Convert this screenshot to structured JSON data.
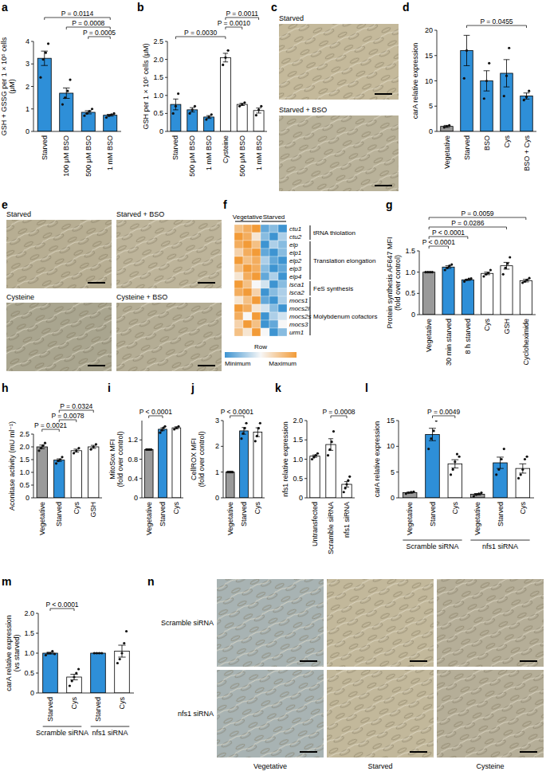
{
  "chart_data": [
    {
      "panel": "a",
      "type": "bar",
      "y_label": "GSH + GSSG per 1 × 10⁵ cells (μM)",
      "categories": [
        "Starved",
        "100 μM BSO",
        "500 μM BSO",
        "1 mM BSO"
      ],
      "values": [
        3.25,
        1.7,
        0.85,
        0.72
      ],
      "errors": [
        0.32,
        0.23,
        0.07,
        0.04
      ],
      "points": [
        [
          2.4,
          3.2,
          3.5,
          3.9
        ],
        [
          1.2,
          1.5,
          1.8,
          2.3
        ],
        [
          0.7,
          0.8,
          0.9,
          1.0
        ],
        [
          0.62,
          0.7,
          0.75,
          0.8
        ]
      ],
      "colors": [
        "#2e8fd8",
        "#2e8fd8",
        "#2e8fd8",
        "#2e8fd8"
      ],
      "ylim": [
        0,
        4
      ],
      "yticks": [
        0,
        1,
        2,
        3,
        4
      ],
      "comparisons": [
        {
          "label": "P = 0.0114",
          "from": 0,
          "to": 3
        },
        {
          "label": "P = 0.0008",
          "from": 1,
          "to": 3
        },
        {
          "label": "P = 0.0005",
          "from": 2,
          "to": 3
        }
      ]
    },
    {
      "panel": "b",
      "type": "bar",
      "y_label": "GSH per 1 × 10⁵ cells (μM)",
      "categories": [
        "Starved",
        "500 μM BSO",
        "1 mM BSO",
        "Cysteine",
        "500 μM BSO",
        "1 mM BSO"
      ],
      "values": [
        0.75,
        0.6,
        0.4,
        2.05,
        0.75,
        0.58
      ],
      "errors": [
        0.15,
        0.06,
        0.04,
        0.12,
        0.03,
        0.07
      ],
      "points": [
        [
          0.5,
          0.7,
          1.05
        ],
        [
          0.5,
          0.6,
          0.7
        ],
        [
          0.33,
          0.4,
          0.47
        ],
        [
          1.85,
          2.05,
          2.25
        ],
        [
          0.7,
          0.75,
          0.8
        ],
        [
          0.45,
          0.6,
          0.7
        ]
      ],
      "colors": [
        "#2e8fd8",
        "#2e8fd8",
        "#2e8fd8",
        "#ffffff",
        "#ffffff",
        "#ffffff"
      ],
      "ylim": [
        0,
        2.5
      ],
      "yticks": [
        0,
        0.5,
        {
          "value": 1,
          "label": "1.0"
        },
        1.5,
        {
          "value": 2,
          "label": "2.0"
        },
        2.5
      ],
      "comparisons": [
        {
          "label": "P = 0.0011",
          "from": 3,
          "to": 5
        },
        {
          "label": "P = 0.0010",
          "from": 3,
          "to": 4
        },
        {
          "label": "P = 0.0030",
          "from": 0,
          "to": 3
        }
      ]
    },
    {
      "panel": "c",
      "type": "image",
      "labels": [
        "Starved",
        "Starved + BSO"
      ]
    },
    {
      "panel": "d",
      "type": "bar",
      "y_label": "carA relative expression",
      "categories": [
        "Vegetative",
        "Starved",
        "BSO",
        "Cys",
        "BSO + Cys"
      ],
      "values": [
        1.0,
        16.0,
        10.0,
        11.5,
        7.0
      ],
      "errors": [
        0.2,
        3.0,
        2.0,
        2.7,
        0.6
      ],
      "points": [
        [
          0.8,
          1.0,
          1.2
        ],
        [
          10.5,
          16.0,
          21.0
        ],
        [
          6.5,
          10.0,
          13.5
        ],
        [
          7.0,
          11.0,
          16.5
        ],
        [
          6.2,
          6.8,
          8.0
        ]
      ],
      "colors": [
        "#9a9a9a",
        "#2e8fd8",
        "#2e8fd8",
        "#2e8fd8",
        "#2e8fd8"
      ],
      "ylim": [
        0,
        20
      ],
      "yticks": [
        0,
        5,
        10,
        15,
        20
      ],
      "comparisons": [
        {
          "label": "P = 0.0455",
          "from": 1,
          "to": 4
        }
      ]
    },
    {
      "panel": "e",
      "type": "image",
      "labels": [
        "Starved",
        "Starved + BSO",
        "Cysteine",
        "Cysteine + BSO"
      ]
    },
    {
      "panel": "f",
      "type": "heatmap",
      "rows": [
        "ctu1",
        "ctu2",
        "elp",
        "elp1",
        "elp2",
        "elp3",
        "elp4",
        "isca1",
        "isca2",
        "mocs1",
        "mocs2l",
        "mocs2s",
        "mocs3",
        "urm1"
      ],
      "column_groups": [
        {
          "label": "Vegetative",
          "columns": [
            0,
            1,
            2
          ]
        },
        {
          "label": "Starved",
          "columns": [
            3,
            4,
            5
          ]
        }
      ],
      "row_groups": [
        {
          "label": "tRNA thiolation",
          "rows": [
            0,
            1
          ]
        },
        {
          "label": "Translation elongation",
          "rows": [
            2,
            3,
            4,
            5,
            6
          ]
        },
        {
          "label": "FeS synthesis",
          "rows": [
            7,
            8
          ]
        },
        {
          "label": "Molybdenum cofactors",
          "rows": [
            9,
            10,
            11,
            12,
            13
          ]
        }
      ],
      "cells": [
        [
          0.8,
          0.9,
          1.0,
          0.1,
          0.2,
          0.0
        ],
        [
          1.0,
          0.9,
          0.6,
          0.2,
          0.0,
          0.3
        ],
        [
          0.9,
          1.0,
          0.8,
          0.0,
          0.3,
          0.2
        ],
        [
          0.7,
          0.9,
          1.0,
          0.1,
          0.0,
          0.2
        ],
        [
          1.0,
          0.8,
          0.9,
          0.3,
          0.1,
          0.0
        ],
        [
          0.8,
          1.0,
          0.9,
          0.2,
          0.0,
          0.1
        ],
        [
          0.6,
          0.9,
          1.0,
          0.1,
          0.3,
          0.0
        ],
        [
          1.0,
          0.8,
          0.5,
          0.4,
          0.0,
          0.2
        ],
        [
          0.9,
          1.0,
          0.7,
          0.0,
          0.2,
          0.3
        ],
        [
          0.6,
          0.8,
          1.0,
          0.1,
          0.0,
          0.3
        ],
        [
          1.0,
          0.9,
          0.6,
          0.4,
          0.2,
          0.0
        ],
        [
          0.9,
          0.5,
          1.0,
          0.0,
          0.3,
          0.4
        ],
        [
          0.7,
          1.0,
          0.8,
          0.0,
          0.1,
          0.5
        ],
        [
          0.8,
          0.6,
          1.0,
          0.5,
          0.0,
          0.2
        ]
      ],
      "colorbar": {
        "label": "Row",
        "min_label": "Minimum",
        "max_label": "Maximum",
        "range": [
          0,
          1
        ]
      }
    },
    {
      "panel": "g",
      "type": "bar",
      "y_label": "Protein synthesis AF647 MFI (fold over control)",
      "categories": [
        "Vegetative",
        "30 min starved",
        "8 h starved",
        "Cys",
        "GSH",
        "Cycloheximide"
      ],
      "values": [
        1.0,
        1.12,
        0.82,
        0.97,
        1.15,
        0.8
      ],
      "errors": [
        0.01,
        0.03,
        0.015,
        0.03,
        0.08,
        0.03
      ],
      "points": [
        [
          1.0,
          1.0,
          1.0,
          1.0
        ],
        [
          1.05,
          1.1,
          1.15,
          1.18
        ],
        [
          0.78,
          0.82,
          0.84,
          0.85
        ],
        [
          0.9,
          0.95,
          0.98,
          1.05
        ],
        [
          0.95,
          1.1,
          1.2,
          1.35
        ],
        [
          0.75,
          0.78,
          0.82,
          0.86
        ]
      ],
      "colors": [
        "#9a9a9a",
        "#2e8fd8",
        "#2e8fd8",
        "#ffffff",
        "#ffffff",
        "#ffffff"
      ],
      "ylim": [
        0,
        1.5
      ],
      "yticks": [
        0,
        0.5,
        {
          "value": 1,
          "label": "1.0"
        },
        1.5
      ],
      "comparisons": [
        {
          "label": "P = 0.0059",
          "from": 0,
          "to": 5
        },
        {
          "label": "P = 0.0286",
          "from": 0,
          "to": 4
        },
        {
          "label": "P < 0.0001",
          "from": 0,
          "to": 2
        },
        {
          "label": "P < 0.0001",
          "from": 0,
          "to": 1
        }
      ]
    },
    {
      "panel": "h",
      "type": "bar",
      "y_label": "Aconitase activity (mU ml⁻¹)",
      "categories": [
        "Vegetative",
        "Starved",
        "Cys",
        "GSH"
      ],
      "values": [
        2.0,
        1.48,
        1.85,
        2.0
      ],
      "errors": [
        0.07,
        0.05,
        0.06,
        0.06
      ],
      "points": [
        [
          1.85,
          1.95,
          2.05,
          2.15
        ],
        [
          1.35,
          1.45,
          1.5,
          1.6
        ],
        [
          1.75,
          1.85,
          1.95
        ],
        [
          1.9,
          2.0,
          2.1
        ]
      ],
      "colors": [
        "#9a9a9a",
        "#2e8fd8",
        "#ffffff",
        "#ffffff"
      ],
      "ylim": [
        0,
        2.5
      ],
      "yticks": [
        0,
        0.5,
        {
          "value": 1,
          "label": "1.0"
        },
        1.5,
        {
          "value": 2,
          "label": "2.0"
        },
        2.5
      ],
      "comparisons": [
        {
          "label": "P = 0.0324",
          "from": 1,
          "to": 3
        },
        {
          "label": "P = 0.0078",
          "from": 1,
          "to": 2
        },
        {
          "label": "P = 0.0021",
          "from": 0,
          "to": 1
        }
      ]
    },
    {
      "panel": "i",
      "type": "bar",
      "y_label": "MitoSox MFI (fold over control)",
      "categories": [
        "Vegetative",
        "Starved",
        "Cys"
      ],
      "values": [
        1.0,
        1.42,
        1.45
      ],
      "errors": [
        0.01,
        0.03,
        0.02
      ],
      "points": [
        [
          1.0,
          1.0,
          1.0,
          1.0
        ],
        [
          1.35,
          1.4,
          1.45,
          1.48
        ],
        [
          1.42,
          1.45,
          1.48
        ]
      ],
      "colors": [
        "#9a9a9a",
        "#2e8fd8",
        "#ffffff"
      ],
      "ylim": [
        0,
        1.6
      ],
      "yticks": [
        0,
        0.4,
        0.8,
        1.2
      ],
      "comparisons": [
        {
          "label": "P < 0.0001",
          "from": 0,
          "to": 1
        }
      ]
    },
    {
      "panel": "j",
      "type": "bar",
      "y_label": "CellROX MFI (fold over control)",
      "categories": [
        "Vegetative",
        "Starved",
        "Cys"
      ],
      "values": [
        1.0,
        2.6,
        2.55
      ],
      "errors": [
        0.02,
        0.13,
        0.17
      ],
      "points": [
        [
          1.0,
          1.0,
          1.0,
          1.0
        ],
        [
          2.3,
          2.5,
          2.7,
          2.9
        ],
        [
          2.2,
          2.4,
          2.7,
          2.9
        ]
      ],
      "colors": [
        "#9a9a9a",
        "#2e8fd8",
        "#ffffff"
      ],
      "ylim": [
        0,
        3
      ],
      "yticks": [
        0,
        1,
        2,
        3
      ],
      "comparisons": [
        {
          "label": "P < 0.0001",
          "from": 0,
          "to": 1
        }
      ]
    },
    {
      "panel": "k",
      "type": "bar",
      "y_label": "nfs1 relative expression",
      "categories": [
        "Untransfected",
        "Scramble siRNA",
        "nfs1 siRNA"
      ],
      "values": [
        1.08,
        1.38,
        0.35
      ],
      "errors": [
        0.03,
        0.15,
        0.07
      ],
      "points": [
        [
          1.0,
          1.05,
          1.1,
          1.15
        ],
        [
          1.1,
          1.25,
          1.45,
          1.72
        ],
        [
          0.15,
          0.25,
          0.35,
          0.45,
          0.55
        ]
      ],
      "colors": [
        "#ffffff",
        "#ffffff",
        "#ffffff"
      ],
      "ylim": [
        0,
        2
      ],
      "yticks": [
        0,
        0.5,
        {
          "value": 1,
          "label": "1.0"
        },
        1.5,
        {
          "value": 2,
          "label": "2.0"
        }
      ],
      "comparisons": [
        {
          "label": "P = 0.0008",
          "from": 1,
          "to": 2
        }
      ]
    },
    {
      "panel": "l",
      "type": "bar",
      "y_label": "carA relative expression",
      "categories": [
        "Vegetative",
        "Starved",
        "Cys",
        "Vegetative",
        "Starved",
        "Cys"
      ],
      "values": [
        1.0,
        12.3,
        6.6,
        0.7,
        6.8,
        5.7
      ],
      "errors": [
        0.1,
        1.2,
        0.8,
        0.15,
        1.1,
        0.9
      ],
      "points": [
        [
          0.8,
          1.0,
          1.1,
          1.2
        ],
        [
          9.5,
          11.5,
          13.0,
          15.0
        ],
        [
          4.5,
          5.5,
          7.0,
          8.5,
          8.0
        ],
        [
          0.3,
          0.6,
          0.8,
          1.0
        ],
        [
          4.5,
          5.5,
          7.5,
          9.5
        ],
        [
          3.8,
          4.5,
          5.5,
          7.5,
          8.0
        ]
      ],
      "colors": [
        "#9a9a9a",
        "#2e8fd8",
        "#ffffff",
        "#9a9a9a",
        "#2e8fd8",
        "#ffffff"
      ],
      "ylim": [
        0,
        15
      ],
      "yticks": [
        0,
        5,
        10,
        15
      ],
      "groups": [
        {
          "label": "Scramble siRNA",
          "categories": [
            0,
            1,
            2
          ]
        },
        {
          "label": "nfs1 siRNA",
          "categories": [
            3,
            4,
            5
          ]
        }
      ],
      "comparisons": [
        {
          "label": "P = 0.0049",
          "from": 1,
          "to": 2
        }
      ]
    },
    {
      "panel": "m",
      "type": "bar",
      "y_label": "carA relative expression (vs starved)",
      "categories": [
        "Starved",
        "Cys",
        "Starved",
        "Cys"
      ],
      "values": [
        1.0,
        0.4,
        1.0,
        1.05
      ],
      "errors": [
        0.02,
        0.07,
        0.01,
        0.15
      ],
      "points": [
        [
          0.95,
          1.0,
          1.0,
          1.05,
          0.98
        ],
        [
          0.18,
          0.3,
          0.4,
          0.5,
          0.6
        ],
        [
          1.0,
          1.0,
          1.0,
          1.0
        ],
        [
          0.75,
          0.85,
          1.0,
          1.25,
          1.55
        ]
      ],
      "colors": [
        "#2e8fd8",
        "#ffffff",
        "#2e8fd8",
        "#ffffff"
      ],
      "ylim": [
        0,
        2
      ],
      "yticks": [
        0,
        0.5,
        {
          "value": 1,
          "label": "1.0"
        },
        1.5,
        {
          "value": 2,
          "label": "2.0"
        }
      ],
      "groups": [
        {
          "label": "Scramble siRNA",
          "categories": [
            0,
            1
          ]
        },
        {
          "label": "nfs1 siRNA",
          "categories": [
            2,
            3
          ]
        }
      ],
      "comparisons": [
        {
          "label": "P < 0.0001",
          "from": 0,
          "to": 1
        }
      ]
    },
    {
      "panel": "n",
      "type": "image",
      "row_labels": [
        "Scramble siRNA",
        "nfs1 siRNA"
      ],
      "column_labels": [
        "Vegetative",
        "Starved",
        "Cysteine"
      ]
    }
  ]
}
